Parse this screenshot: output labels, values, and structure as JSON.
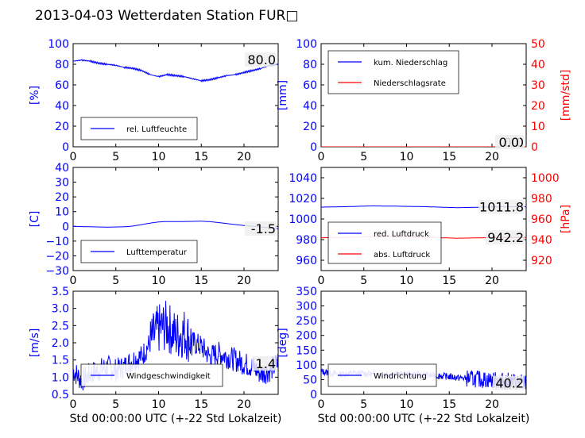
{
  "page": {
    "title": "2013-04-03 Wetterdaten Station FUR□"
  },
  "colors": {
    "blue": "#0000ff",
    "red": "#ff0000",
    "axis_text_blue": "#0000ff",
    "axis_text_red": "#ff0000"
  },
  "chart_data": [
    {
      "id": "humidity",
      "type": "line",
      "ylabel": "[%]",
      "xlim": [
        0,
        24
      ],
      "ylim": [
        0,
        100
      ],
      "xticks": [
        "0",
        "5",
        "10",
        "15",
        "20"
      ],
      "yticks": [
        "0",
        "20",
        "40",
        "60",
        "80",
        "100"
      ],
      "last_value_label": "80.0",
      "legend": [
        "rel. Luftfeuchte"
      ],
      "legend_location": "lower-left",
      "series": [
        {
          "name": "rel. Luftfeuchte",
          "color": "#0000ff",
          "x": [
            0,
            1,
            2,
            3,
            4,
            5,
            6,
            7,
            8,
            9,
            10,
            11,
            12,
            13,
            14,
            15,
            16,
            17,
            18,
            19,
            20,
            21,
            22,
            23,
            24
          ],
          "y": [
            83,
            84,
            83,
            81,
            80,
            79,
            77,
            76,
            74,
            70,
            68,
            70,
            69,
            68,
            66,
            64,
            65,
            67,
            69,
            70,
            72,
            74,
            76,
            79,
            80
          ]
        }
      ]
    },
    {
      "id": "precip",
      "type": "line",
      "ylabel": "[mm]",
      "ylabel_right": "[mm/std]",
      "xlim": [
        0,
        24
      ],
      "ylim": [
        0,
        100
      ],
      "ylim_right": [
        0,
        50
      ],
      "xticks": [
        "0",
        "5",
        "10",
        "15",
        "20"
      ],
      "yticks": [
        "0",
        "20",
        "40",
        "60",
        "80",
        "100"
      ],
      "yticks_right": [
        "0",
        "10",
        "20",
        "30",
        "40",
        "50"
      ],
      "last_value_label": "0.0",
      "last_value_label_2": "0.0",
      "legend": [
        "kum. Niederschlag",
        "Niederschlagsrate"
      ],
      "legend_location": "upper-left",
      "series": [
        {
          "name": "kum. Niederschlag",
          "color": "#0000ff",
          "axis": "left",
          "x": [
            0,
            24
          ],
          "y": [
            0,
            0
          ]
        },
        {
          "name": "Niederschlagsrate",
          "color": "#ff0000",
          "axis": "right",
          "x": [
            0,
            24
          ],
          "y": [
            0,
            0
          ]
        }
      ]
    },
    {
      "id": "temperature",
      "type": "line",
      "ylabel": "[C]",
      "xlim": [
        0,
        24
      ],
      "ylim": [
        -30,
        40
      ],
      "xticks": [
        "0",
        "5",
        "10",
        "15",
        "20"
      ],
      "yticks": [
        "−30",
        "−20",
        "−10",
        "0",
        "10",
        "20",
        "30",
        "40"
      ],
      "last_value_label": "-1.5",
      "legend": [
        "Lufttemperatur"
      ],
      "legend_location": "lower-left",
      "series": [
        {
          "name": "Lufttemperatur",
          "color": "#0000ff",
          "x": [
            0,
            2,
            4,
            6,
            7,
            8,
            9,
            10,
            11,
            12,
            13,
            14,
            15,
            16,
            17,
            18,
            19,
            20,
            21,
            22,
            23,
            24
          ],
          "y": [
            0,
            -0.3,
            -0.5,
            -0.3,
            0.2,
            1.2,
            2.2,
            3,
            3.3,
            3.2,
            3.3,
            3.4,
            3.5,
            3.2,
            2.6,
            1.9,
            1.2,
            0.6,
            0.1,
            -0.5,
            -1.0,
            -1.5
          ]
        }
      ]
    },
    {
      "id": "pressure",
      "type": "line",
      "ylabel_right": "[hPa]",
      "xlim": [
        0,
        24
      ],
      "ylim": [
        950,
        1050
      ],
      "ylim_right": [
        910,
        1010
      ],
      "xticks": [
        "0",
        "5",
        "10",
        "15",
        "20"
      ],
      "yticks": [
        "960",
        "980",
        "1000",
        "1020",
        "1040"
      ],
      "yticks_right": [
        "920",
        "940",
        "960",
        "980",
        "1000"
      ],
      "last_value_label": "1011.8",
      "last_value_label_2": "942.2",
      "legend": [
        "red. Luftdruck",
        "abs. Luftdruck"
      ],
      "legend_location": "lower-left",
      "series": [
        {
          "name": "red. Luftdruck",
          "color": "#0000ff",
          "axis": "left",
          "x": [
            0,
            3,
            6,
            9,
            12,
            15,
            16,
            18,
            21,
            24
          ],
          "y": [
            1011.5,
            1012,
            1012.7,
            1012.4,
            1012,
            1011.2,
            1011,
            1011.3,
            1011.9,
            1011.8
          ]
        },
        {
          "name": "abs. Luftdruck",
          "color": "#ff0000",
          "axis": "right",
          "x": [
            0,
            3,
            6,
            9,
            12,
            15,
            16,
            18,
            21,
            24
          ],
          "y": [
            941.8,
            942.3,
            942.8,
            942.6,
            942.3,
            941.6,
            941.4,
            941.7,
            942.1,
            942.2
          ]
        }
      ]
    },
    {
      "id": "wind_speed",
      "type": "line",
      "ylabel": "[m/s]",
      "xlabel": "Std 00:00:00 UTC (+-22 Std Lokalzeit)",
      "xlim": [
        0,
        24
      ],
      "ylim": [
        0.5,
        3.5
      ],
      "xticks": [
        "0",
        "5",
        "10",
        "15",
        "20"
      ],
      "yticks": [
        "0.5",
        "1.0",
        "1.5",
        "2.0",
        "2.5",
        "3.0",
        "3.5"
      ],
      "last_value_label": "1.4",
      "legend": [
        "Windgeschwindigkeit"
      ],
      "legend_location": "lower-left",
      "series": [
        {
          "name": "Windgeschwindigkeit",
          "color": "#0000ff",
          "x": [
            0,
            1,
            2,
            3,
            4,
            5,
            6,
            7,
            8,
            9,
            10,
            11,
            12,
            13,
            14,
            15,
            16,
            17,
            18,
            19,
            20,
            21,
            22,
            23,
            24
          ],
          "y": [
            1.2,
            0.9,
            1.1,
            1.2,
            1.3,
            1.2,
            1.3,
            1.5,
            1.6,
            2.0,
            2.4,
            2.5,
            2.2,
            2.3,
            2.0,
            1.9,
            1.6,
            1.7,
            1.6,
            1.5,
            1.4,
            1.3,
            1.1,
            1.2,
            1.4
          ]
        }
      ]
    },
    {
      "id": "wind_direction",
      "type": "scatter",
      "ylabel": "[deg]",
      "xlabel": "Std 00:00:00 UTC (+-22 Std Lokalzeit)",
      "xlim": [
        0,
        24
      ],
      "ylim": [
        0,
        360
      ],
      "xticks": [
        "0",
        "5",
        "10",
        "15",
        "20"
      ],
      "yticks": [
        "0",
        "50",
        "100",
        "150",
        "200",
        "250",
        "300",
        "350"
      ],
      "last_value_label": "40.2",
      "legend": [
        "Windrichtung"
      ],
      "legend_location": "lower-left",
      "series": [
        {
          "name": "Windrichtung",
          "color": "#0000ff",
          "x": [
            0,
            1,
            2,
            3,
            4,
            5,
            6,
            7,
            8,
            9,
            10,
            11,
            12,
            13,
            14,
            15,
            16,
            17,
            18,
            19,
            20,
            21,
            22,
            23,
            24
          ],
          "y": [
            80,
            75,
            70,
            72,
            74,
            73,
            70,
            72,
            71,
            70,
            72,
            69,
            68,
            66,
            64,
            62,
            58,
            56,
            54,
            52,
            50,
            48,
            46,
            44,
            40
          ]
        }
      ]
    }
  ]
}
